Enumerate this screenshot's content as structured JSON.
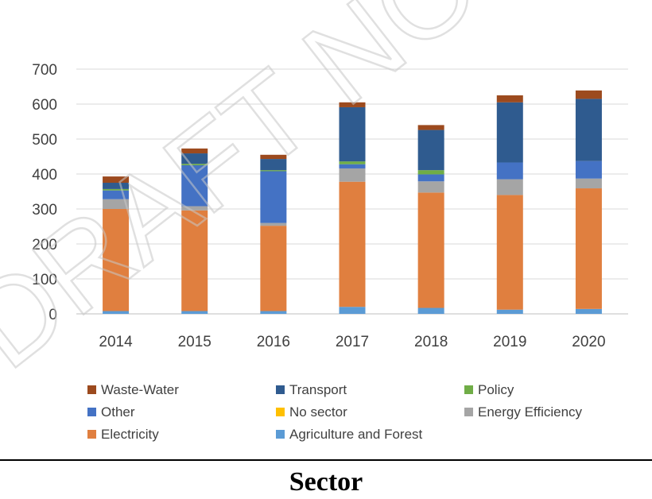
{
  "chart_data": {
    "type": "bar",
    "stacked": true,
    "categories": [
      "2014",
      "2015",
      "2016",
      "2017",
      "2018",
      "2019",
      "2020"
    ],
    "ylim": [
      0,
      700
    ],
    "yticks": [
      0,
      100,
      200,
      300,
      400,
      500,
      600,
      700
    ],
    "grid": true,
    "legend_position": "bottom",
    "series": [
      {
        "name": "Agriculture and Forest",
        "color": "#5B9BD5",
        "values": [
          8,
          8,
          8,
          20,
          17,
          12,
          14
        ]
      },
      {
        "name": "Electricity",
        "color": "#E07F3F",
        "values": [
          292,
          288,
          244,
          358,
          330,
          328,
          345
        ]
      },
      {
        "name": "Energy Efficiency",
        "color": "#A5A5A5",
        "values": [
          28,
          12,
          8,
          38,
          32,
          45,
          28
        ]
      },
      {
        "name": "No sector",
        "color": "#FFC000",
        "values": [
          0,
          0,
          0,
          0,
          0,
          0,
          0
        ]
      },
      {
        "name": "Other",
        "color": "#4472C4",
        "values": [
          25,
          117,
          148,
          12,
          20,
          48,
          50
        ]
      },
      {
        "name": "Policy",
        "color": "#70AD47",
        "values": [
          4,
          4,
          3,
          8,
          12,
          0,
          0
        ]
      },
      {
        "name": "Transport",
        "color": "#2F5B8F",
        "values": [
          18,
          30,
          32,
          155,
          115,
          172,
          178
        ]
      },
      {
        "name": "Waste-Water",
        "color": "#9C4A1E",
        "values": [
          18,
          14,
          12,
          14,
          14,
          20,
          24
        ]
      }
    ],
    "legend_order": [
      "Waste-Water",
      "Transport",
      "Policy",
      "Other",
      "No sector",
      "Energy Efficiency",
      "Electricity",
      "Agriculture and Forest"
    ]
  },
  "caption": "Sector",
  "watermark": "DRAFT NOT FINAL"
}
